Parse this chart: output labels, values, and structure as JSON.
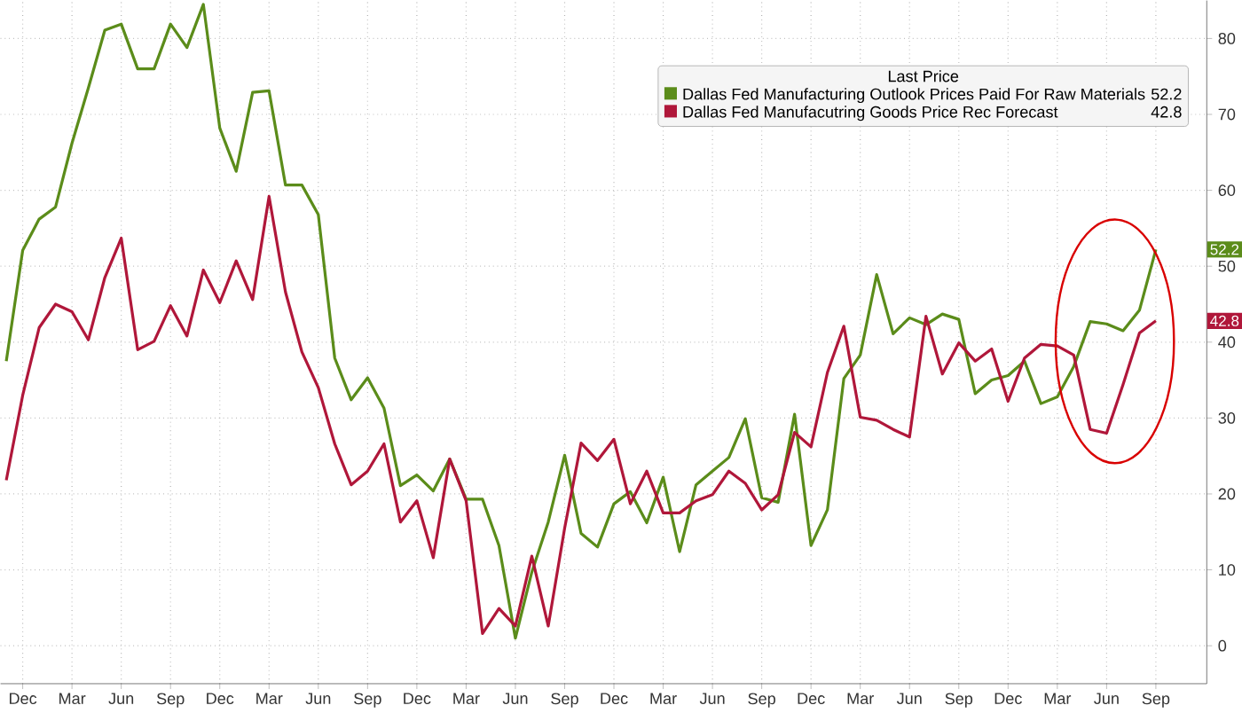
{
  "chart_data": {
    "type": "line",
    "annotations": [
      "52.2",
      "42.8",
      "52.2",
      "42.8"
    ],
    "legend_title": "Last Price",
    "legend": "top right",
    "grid": true,
    "marker": "none",
    "line_style": "solid",
    "categories": [
      null,
      "Dec",
      null,
      null,
      "Mar",
      null,
      null,
      "Jun",
      null,
      null,
      "Sep",
      null,
      null,
      "Dec",
      null,
      null,
      "Mar",
      null,
      null,
      "Jun",
      null,
      null,
      "Sep",
      null,
      null,
      "Dec",
      null,
      null,
      "Mar",
      null,
      null,
      "Jun",
      null,
      null,
      "Sep",
      null,
      null,
      "Dec",
      null,
      null,
      "Mar",
      null,
      null,
      "Jun",
      null,
      null,
      "Sep",
      null,
      null,
      "Dec",
      null,
      null,
      "Mar",
      null,
      null,
      "Jun",
      null,
      null,
      "Sep",
      null,
      null,
      "Dec",
      null,
      null,
      "Mar",
      null,
      null,
      "Jun",
      null,
      null,
      "Sep"
    ],
    "ylim": [
      -5,
      85
    ],
    "yticks": [
      0,
      10,
      20,
      30,
      40,
      50,
      60,
      70,
      80
    ],
    "series": [
      {
        "name": "Dallas Fed Manufacturing Outlook Prices Paid For Raw Materials",
        "color": "#5b8c1a",
        "values": [
          37.5,
          52.1,
          56.2,
          57.8,
          66.2,
          73.5,
          81.1,
          81.9,
          76.0,
          76.0,
          81.9,
          78.8,
          84.5,
          68.2,
          62.5,
          72.9,
          73.1,
          60.7,
          60.7,
          56.8,
          37.9,
          32.4,
          35.3,
          31.3,
          21.1,
          22.5,
          20.4,
          24.6,
          19.3,
          19.3,
          13.2,
          1.0,
          9.7,
          16.3,
          25.1,
          14.8,
          13.0,
          18.7,
          20.3,
          16.2,
          22.2,
          12.4,
          21.2,
          23.0,
          24.8,
          29.9,
          19.5,
          18.9,
          30.5,
          13.2,
          17.9,
          35.2,
          38.3,
          48.9,
          41.1,
          43.2,
          42.3,
          43.7,
          43.0,
          33.2,
          35.0,
          35.6,
          37.5,
          31.9,
          32.8,
          36.8,
          42.7,
          42.4,
          41.5,
          44.2,
          52.2
        ]
      },
      {
        "name": "Dallas Fed Manufacutring Goods Price Rec Forecast",
        "color": "#b0173a",
        "values": [
          21.8,
          33.0,
          41.9,
          45.0,
          44.0,
          40.3,
          48.5,
          53.7,
          39.0,
          40.1,
          44.8,
          40.8,
          49.5,
          45.2,
          50.7,
          45.6,
          59.2,
          46.6,
          38.7,
          34.0,
          26.6,
          21.2,
          23.0,
          26.6,
          16.3,
          19.1,
          11.6,
          24.6,
          19.1,
          1.6,
          4.9,
          2.6,
          11.8,
          2.6,
          15.5,
          26.7,
          24.4,
          27.2,
          18.7,
          23.0,
          17.5,
          17.5,
          19.1,
          19.9,
          23.0,
          21.4,
          17.9,
          19.9,
          28.1,
          26.2,
          36.0,
          42.1,
          30.1,
          29.7,
          28.5,
          27.5,
          43.4,
          35.8,
          39.9,
          37.5,
          39.1,
          32.2,
          37.9,
          39.7,
          39.5,
          38.3,
          28.5,
          28.0,
          34.4,
          41.2,
          42.8
        ]
      }
    ]
  }
}
